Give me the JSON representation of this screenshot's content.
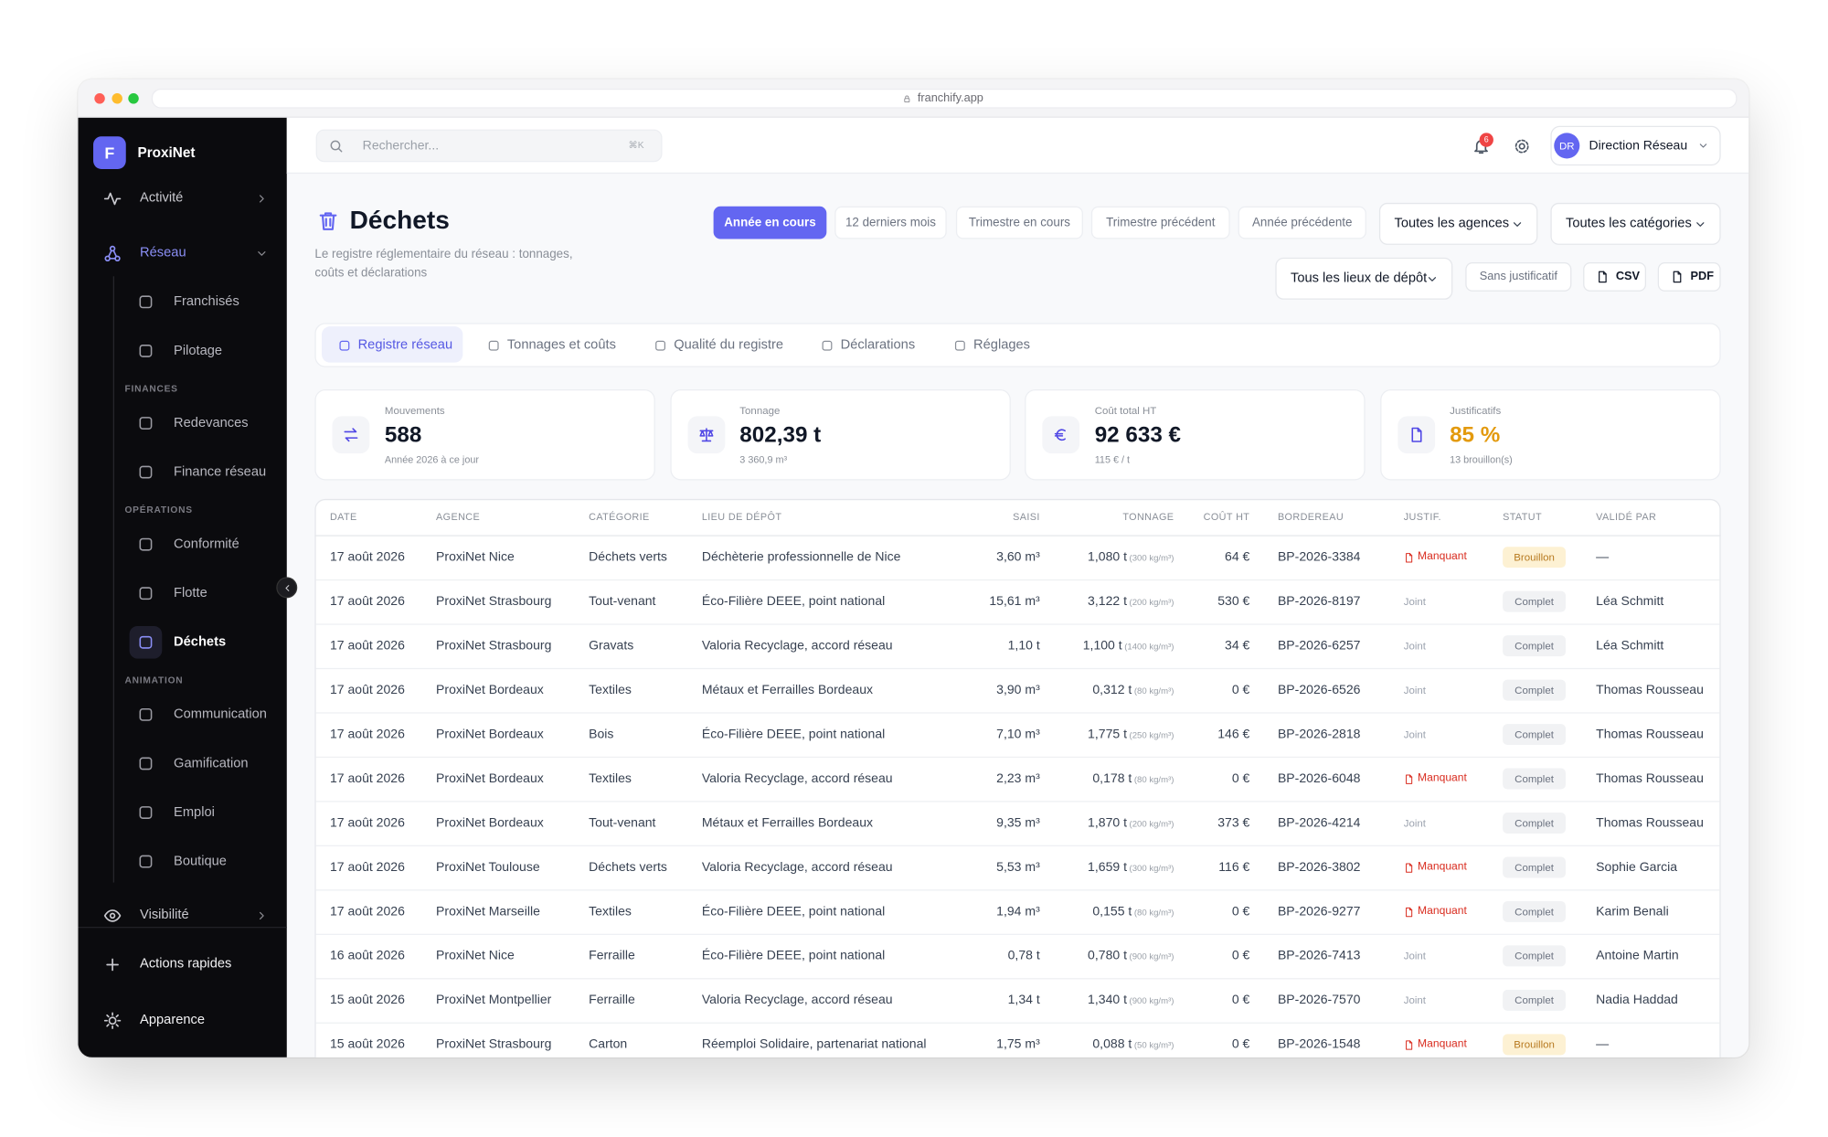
{
  "browser": {
    "url": "franchify.app"
  },
  "sidebar": {
    "logo": "F",
    "brand": "ProxiNet",
    "nav": [
      {
        "label": "Activité"
      },
      {
        "label": "Réseau",
        "items": [
          "Franchisés",
          "Pilotage"
        ],
        "sections": [
          {
            "title": "FINANCES",
            "items": [
              "Redevances",
              "Finance réseau"
            ]
          },
          {
            "title": "OPÉRATIONS",
            "items": [
              "Conformité",
              "Flotte",
              "Déchets"
            ]
          },
          {
            "title": "ANIMATION",
            "items": [
              "Communication",
              "Gamification",
              "Emploi",
              "Boutique"
            ]
          }
        ]
      },
      {
        "label": "Visibilité"
      }
    ],
    "active": "Déchets",
    "footer": [
      "Actions rapides",
      "Apparence"
    ]
  },
  "topbar": {
    "search": "Rechercher...",
    "shortcut": "⌘K",
    "notifications": "6",
    "avatar": "DR",
    "user": "Direction Réseau"
  },
  "header": {
    "title": "Déchets",
    "subtitle": "Le registre réglementaire du réseau : tonnages, coûts et déclarations",
    "periods": [
      "Année en cours",
      "12 derniers mois",
      "Trimestre en cours",
      "Trimestre précédent",
      "Année précédente"
    ],
    "dropdowns": [
      "Toutes les agences",
      "Toutes les catégories",
      "Tous les lieux de dépôt"
    ],
    "buttons": [
      "Sans justificatif",
      "CSV",
      "PDF"
    ]
  },
  "tabs": [
    "Registre réseau",
    "Tonnages et coûts",
    "Qualité du registre",
    "Déclarations",
    "Réglages"
  ],
  "kpis": [
    {
      "label": "Mouvements",
      "value": "588",
      "sub": "Année 2026 à ce jour",
      "color": "#111827"
    },
    {
      "label": "Tonnage",
      "value": "802,39 t",
      "sub": "3 360,9 m³",
      "color": "#111827"
    },
    {
      "label": "Coût total HT",
      "value": "92 633 €",
      "sub": "115 € / t",
      "color": "#111827"
    },
    {
      "label": "Justificatifs",
      "value": "85 %",
      "sub": "13 brouillon(s)",
      "color": "#e39a0e"
    }
  ],
  "table": {
    "columns": [
      "DATE",
      "AGENCE",
      "CATÉGORIE",
      "LIEU DE DÉPÔT",
      "SAISI",
      "TONNAGE",
      "COÛT HT",
      "BORDEREAU",
      "JUSTIF.",
      "STATUT",
      "VALIDÉ PAR"
    ],
    "justif_styles": {
      "Manquant": {
        "color": "#d92d20",
        "icon": true
      },
      "Joint": {
        "color": "#9ca3af",
        "icon": false
      }
    },
    "status_styles": {
      "Brouillon": {
        "bg": "#fdf1d3",
        "color": "#b7791f"
      },
      "Complet": {
        "bg": "#f1f2f4",
        "color": "#6b7280"
      }
    },
    "rows": [
      {
        "date": "17 août 2026",
        "agence": "ProxiNet Nice",
        "categorie": "Déchets verts",
        "lieu": "Déchèterie professionnelle de Nice",
        "saisi": "3,60 m³",
        "tonnage": "1,080 t",
        "densite": "(300 kg/m³)",
        "cout": "64 €",
        "bordereau": "BP-2026-3384",
        "justif": "Manquant",
        "statut": "Brouillon",
        "valide": "—"
      },
      {
        "date": "17 août 2026",
        "agence": "ProxiNet Strasbourg",
        "categorie": "Tout-venant",
        "lieu": "Éco-Filière DEEE, point national",
        "saisi": "15,61 m³",
        "tonnage": "3,122 t",
        "densite": "(200 kg/m³)",
        "cout": "530 €",
        "bordereau": "BP-2026-8197",
        "justif": "Joint",
        "statut": "Complet",
        "valide": "Léa Schmitt"
      },
      {
        "date": "17 août 2026",
        "agence": "ProxiNet Strasbourg",
        "categorie": "Gravats",
        "lieu": "Valoria Recyclage, accord réseau",
        "saisi": "1,10 t",
        "tonnage": "1,100 t",
        "densite": "(1400 kg/m³)",
        "cout": "34 €",
        "bordereau": "BP-2026-6257",
        "justif": "Joint",
        "statut": "Complet",
        "valide": "Léa Schmitt"
      },
      {
        "date": "17 août 2026",
        "agence": "ProxiNet Bordeaux",
        "categorie": "Textiles",
        "lieu": "Métaux et Ferrailles Bordeaux",
        "saisi": "3,90 m³",
        "tonnage": "0,312 t",
        "densite": "(80 kg/m³)",
        "cout": "0 €",
        "bordereau": "BP-2026-6526",
        "justif": "Joint",
        "statut": "Complet",
        "valide": "Thomas Rousseau"
      },
      {
        "date": "17 août 2026",
        "agence": "ProxiNet Bordeaux",
        "categorie": "Bois",
        "lieu": "Éco-Filière DEEE, point national",
        "saisi": "7,10 m³",
        "tonnage": "1,775 t",
        "densite": "(250 kg/m³)",
        "cout": "146 €",
        "bordereau": "BP-2026-2818",
        "justif": "Joint",
        "statut": "Complet",
        "valide": "Thomas Rousseau"
      },
      {
        "date": "17 août 2026",
        "agence": "ProxiNet Bordeaux",
        "categorie": "Textiles",
        "lieu": "Valoria Recyclage, accord réseau",
        "saisi": "2,23 m³",
        "tonnage": "0,178 t",
        "densite": "(80 kg/m³)",
        "cout": "0 €",
        "bordereau": "BP-2026-6048",
        "justif": "Manquant",
        "statut": "Complet",
        "valide": "Thomas Rousseau"
      },
      {
        "date": "17 août 2026",
        "agence": "ProxiNet Bordeaux",
        "categorie": "Tout-venant",
        "lieu": "Métaux et Ferrailles Bordeaux",
        "saisi": "9,35 m³",
        "tonnage": "1,870 t",
        "densite": "(200 kg/m³)",
        "cout": "373 €",
        "bordereau": "BP-2026-4214",
        "justif": "Joint",
        "statut": "Complet",
        "valide": "Thomas Rousseau"
      },
      {
        "date": "17 août 2026",
        "agence": "ProxiNet Toulouse",
        "categorie": "Déchets verts",
        "lieu": "Valoria Recyclage, accord réseau",
        "saisi": "5,53 m³",
        "tonnage": "1,659 t",
        "densite": "(300 kg/m³)",
        "cout": "116 €",
        "bordereau": "BP-2026-3802",
        "justif": "Manquant",
        "statut": "Complet",
        "valide": "Sophie Garcia"
      },
      {
        "date": "17 août 2026",
        "agence": "ProxiNet Marseille",
        "categorie": "Textiles",
        "lieu": "Éco-Filière DEEE, point national",
        "saisi": "1,94 m³",
        "tonnage": "0,155 t",
        "densite": "(80 kg/m³)",
        "cout": "0 €",
        "bordereau": "BP-2026-9277",
        "justif": "Manquant",
        "statut": "Complet",
        "valide": "Karim Benali"
      },
      {
        "date": "16 août 2026",
        "agence": "ProxiNet Nice",
        "categorie": "Ferraille",
        "lieu": "Éco-Filière DEEE, point national",
        "saisi": "0,78 t",
        "tonnage": "0,780 t",
        "densite": "(900 kg/m³)",
        "cout": "0 €",
        "bordereau": "BP-2026-7413",
        "justif": "Joint",
        "statut": "Complet",
        "valide": "Antoine Martin"
      },
      {
        "date": "15 août 2026",
        "agence": "ProxiNet Montpellier",
        "categorie": "Ferraille",
        "lieu": "Valoria Recyclage, accord réseau",
        "saisi": "1,34 t",
        "tonnage": "1,340 t",
        "densite": "(900 kg/m³)",
        "cout": "0 €",
        "bordereau": "BP-2026-7570",
        "justif": "Joint",
        "statut": "Complet",
        "valide": "Nadia Haddad"
      },
      {
        "date": "15 août 2026",
        "agence": "ProxiNet Strasbourg",
        "categorie": "Carton",
        "lieu": "Réemploi Solidaire, partenariat national",
        "saisi": "1,75 m³",
        "tonnage": "0,088 t",
        "densite": "(50 kg/m³)",
        "cout": "0 €",
        "bordereau": "BP-2026-1548",
        "justif": "Manquant",
        "statut": "Brouillon",
        "valide": "—"
      }
    ]
  }
}
